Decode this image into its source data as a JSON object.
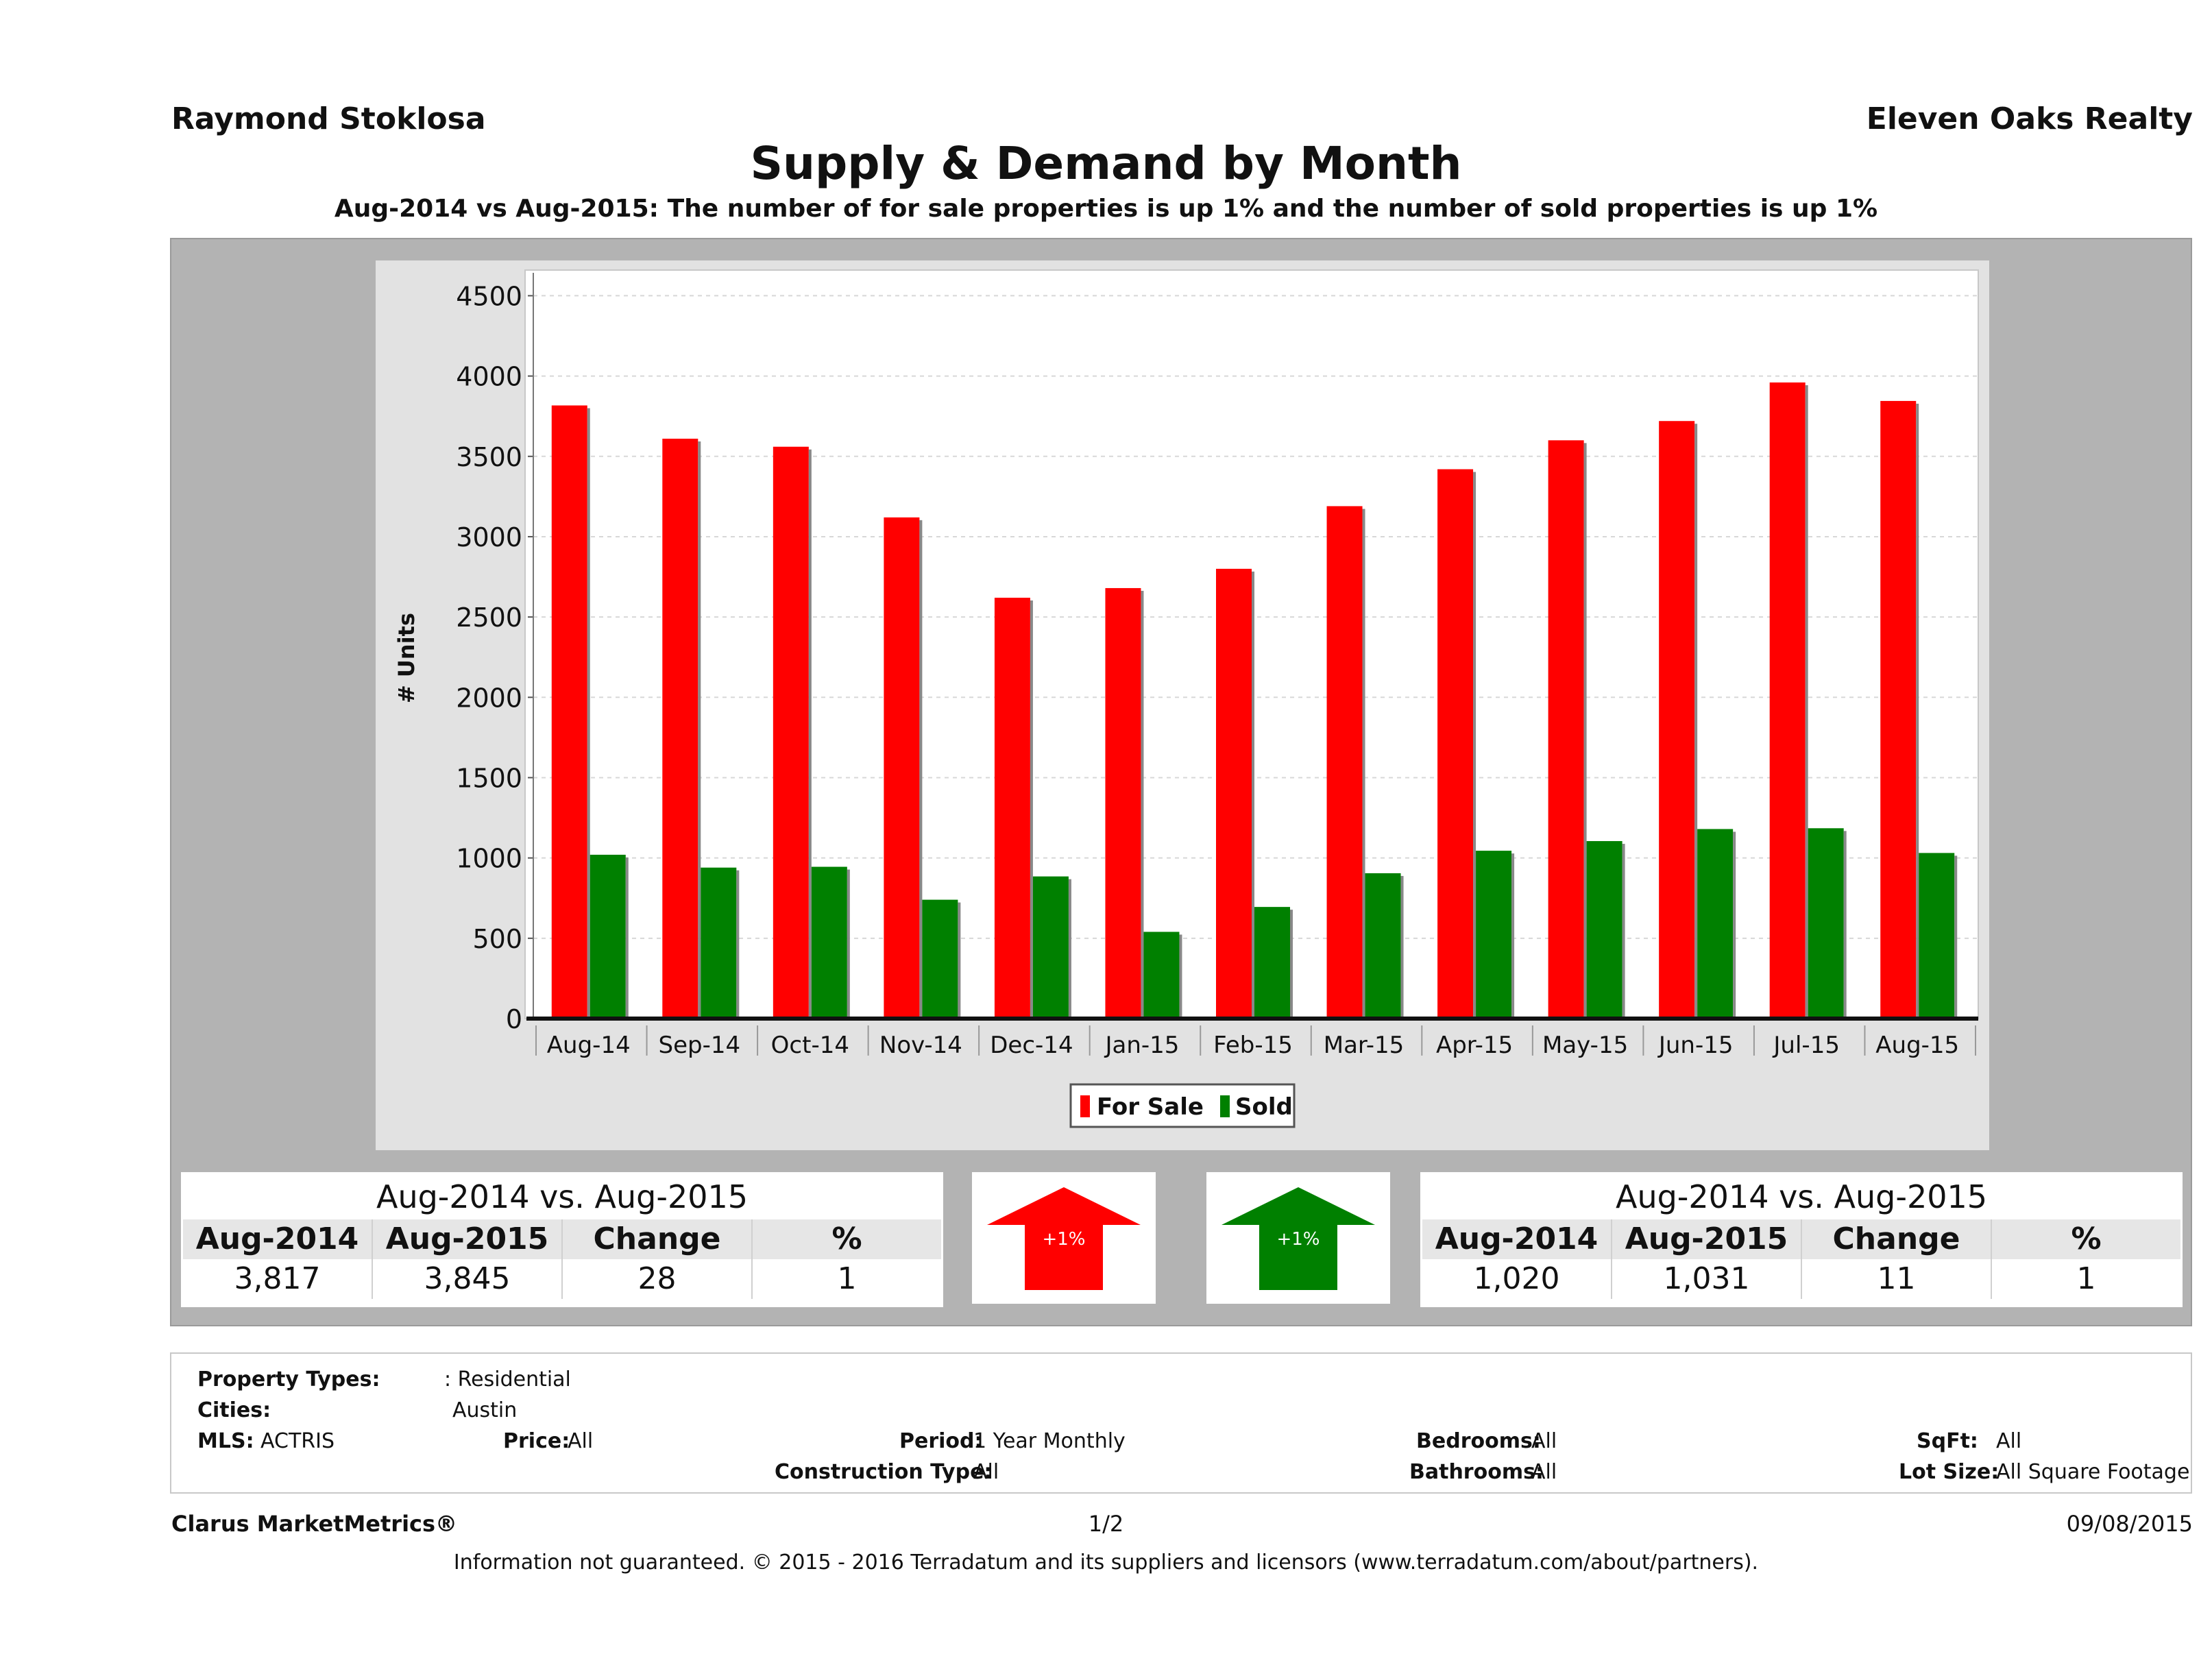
{
  "header": {
    "agent": "Raymond Stoklosa",
    "company": "Eleven Oaks Realty",
    "title": "Supply & Demand by Month",
    "subtitle": "Aug-2014 vs Aug-2015: The number of for sale properties is up 1% and the number of sold properties is up 1%"
  },
  "chart_data": {
    "type": "bar",
    "categories": [
      "Aug-14",
      "Sep-14",
      "Oct-14",
      "Nov-14",
      "Dec-14",
      "Jan-15",
      "Feb-15",
      "Mar-15",
      "Apr-15",
      "May-15",
      "Jun-15",
      "Jul-15",
      "Aug-15"
    ],
    "series": [
      {
        "name": "For Sale",
        "color": "#ff0000",
        "values": [
          3817,
          3610,
          3560,
          3120,
          2620,
          2680,
          2800,
          3190,
          3420,
          3600,
          3720,
          3960,
          3845
        ]
      },
      {
        "name": "Sold",
        "color": "#008000",
        "values": [
          1020,
          940,
          945,
          740,
          885,
          540,
          695,
          905,
          1045,
          1105,
          1180,
          1185,
          1031
        ]
      }
    ],
    "ylabel": "# Units",
    "ylim": [
      0,
      4600
    ],
    "yticks": [
      0,
      500,
      1000,
      1500,
      2000,
      2500,
      3000,
      3500,
      4000,
      4500
    ],
    "grid": true,
    "legend": "bottom-center"
  },
  "for_sale_summary": {
    "heading": "Aug-2014 vs. Aug-2015",
    "columns": [
      "Aug-2014",
      "Aug-2015",
      "Change",
      "%"
    ],
    "values": [
      "3,817",
      "3,845",
      "28",
      "1"
    ],
    "badge": "+1%",
    "color": "#ff0000"
  },
  "sold_summary": {
    "heading": "Aug-2014 vs. Aug-2015",
    "columns": [
      "Aug-2014",
      "Aug-2015",
      "Change",
      "%"
    ],
    "values": [
      "1,020",
      "1,031",
      "11",
      "1"
    ],
    "badge": "+1%",
    "color": "#008000"
  },
  "criteria": {
    "property_types_label": "Property Types:",
    "property_types_value": ": Residential",
    "cities_label": "Cities:",
    "cities_value": "Austin",
    "mls_label": "MLS:",
    "mls_value": "ACTRIS",
    "price_label": "Price:",
    "price_value": "All",
    "period_label": "Period:",
    "period_value": "1 Year Monthly",
    "construction_label": "Construction Type:",
    "construction_value": "All",
    "bedrooms_label": "Bedrooms:",
    "bedrooms_value": "All",
    "bathrooms_label": "Bathrooms:",
    "bathrooms_value": "All",
    "sqft_label": "SqFt:",
    "sqft_value": "All",
    "lotsize_label": "Lot Size:",
    "lotsize_value": "All Square Footage"
  },
  "footer": {
    "brand": "Clarus MarketMetrics®",
    "page": "1/2",
    "date": "09/08/2015",
    "disclaimer": "Information not guaranteed. © 2015 - 2016 Terradatum and its suppliers and licensors (www.terradatum.com/about/partners)."
  }
}
